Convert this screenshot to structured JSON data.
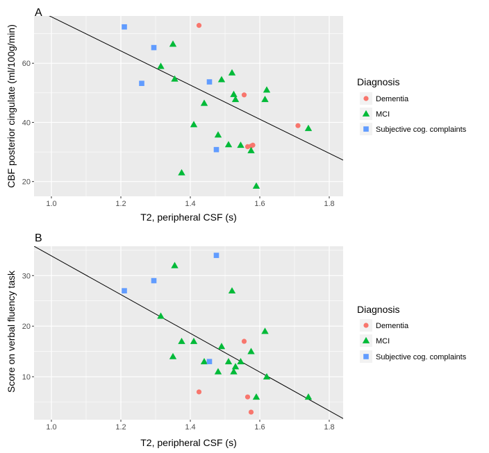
{
  "chart_data": [
    {
      "type": "scatter",
      "panel_label": "A",
      "xlabel": "T2, peripheral CSF (s)",
      "ylabel": "CBF posterior cingulate (ml/100g/min)",
      "xlim": [
        0.95,
        1.84
      ],
      "ylim": [
        15,
        76
      ],
      "x_ticks": [
        1.0,
        1.2,
        1.4,
        1.6,
        1.8
      ],
      "x_tick_labels": [
        "1.0",
        "1.2",
        "1.4",
        "1.6",
        "1.8"
      ],
      "y_ticks": [
        20,
        40,
        60
      ],
      "y_tick_labels": [
        "20",
        "40",
        "60"
      ],
      "grid": true,
      "legend": {
        "title": "Diagnosis",
        "position": "right"
      },
      "trend_line": {
        "slope": -57.7,
        "intercept": 133.4
      },
      "series": [
        {
          "name": "Dementia",
          "color": "#F8766D",
          "marker": "circle",
          "points": [
            [
              1.425,
              72.8
            ],
            [
              1.555,
              49.3
            ],
            [
              1.565,
              31.8
            ],
            [
              1.575,
              32.0
            ],
            [
              1.58,
              32.3
            ],
            [
              1.71,
              38.9
            ]
          ]
        },
        {
          "name": "MCI",
          "color": "#00BA38",
          "marker": "triangle",
          "points": [
            [
              1.315,
              59.0
            ],
            [
              1.35,
              66.5
            ],
            [
              1.355,
              54.7
            ],
            [
              1.375,
              23.0
            ],
            [
              1.41,
              39.3
            ],
            [
              1.44,
              46.5
            ],
            [
              1.48,
              35.8
            ],
            [
              1.49,
              54.5
            ],
            [
              1.51,
              32.5
            ],
            [
              1.52,
              56.8
            ],
            [
              1.525,
              49.5
            ],
            [
              1.53,
              47.8
            ],
            [
              1.545,
              32.3
            ],
            [
              1.575,
              30.5
            ],
            [
              1.59,
              18.5
            ],
            [
              1.615,
              47.8
            ],
            [
              1.62,
              51.0
            ],
            [
              1.74,
              38.0
            ]
          ]
        },
        {
          "name": "Subjective cog. complaints",
          "color": "#619CFF",
          "marker": "square",
          "points": [
            [
              1.21,
              72.3
            ],
            [
              1.26,
              53.2
            ],
            [
              1.295,
              65.3
            ],
            [
              1.455,
              53.7
            ],
            [
              1.475,
              30.8
            ]
          ]
        }
      ]
    },
    {
      "type": "scatter",
      "panel_label": "B",
      "xlabel": "T2, peripheral CSF (s)",
      "ylabel": "Score on verbal fluency task",
      "xlim": [
        0.95,
        1.84
      ],
      "ylim": [
        1.5,
        35.8
      ],
      "x_ticks": [
        1.0,
        1.2,
        1.4,
        1.6,
        1.8
      ],
      "x_tick_labels": [
        "1.0",
        "1.2",
        "1.4",
        "1.6",
        "1.8"
      ],
      "y_ticks": [
        10,
        20,
        30
      ],
      "y_tick_labels": [
        "10",
        "20",
        "30"
      ],
      "grid": true,
      "legend": {
        "title": "Diagnosis",
        "position": "right"
      },
      "trend_line": {
        "slope": -38.3,
        "intercept": 72.2
      },
      "series": [
        {
          "name": "Dementia",
          "color": "#F8766D",
          "marker": "circle",
          "points": [
            [
              1.425,
              7.0
            ],
            [
              1.555,
              17.0
            ],
            [
              1.565,
              6.0
            ],
            [
              1.575,
              3.0
            ]
          ]
        },
        {
          "name": "MCI",
          "color": "#00BA38",
          "marker": "triangle",
          "points": [
            [
              1.315,
              22.0
            ],
            [
              1.35,
              14.0
            ],
            [
              1.355,
              32.0
            ],
            [
              1.375,
              17.0
            ],
            [
              1.41,
              17.0
            ],
            [
              1.44,
              13.0
            ],
            [
              1.48,
              11.0
            ],
            [
              1.49,
              16.0
            ],
            [
              1.51,
              13.0
            ],
            [
              1.52,
              27.0
            ],
            [
              1.525,
              11.0
            ],
            [
              1.53,
              12.0
            ],
            [
              1.545,
              13.0
            ],
            [
              1.575,
              15.0
            ],
            [
              1.59,
              6.0
            ],
            [
              1.615,
              19.0
            ],
            [
              1.62,
              10.0
            ],
            [
              1.74,
              6.0
            ]
          ]
        },
        {
          "name": "Subjective cog. complaints",
          "color": "#619CFF",
          "marker": "square",
          "points": [
            [
              1.21,
              27.0
            ],
            [
              1.295,
              29.0
            ],
            [
              1.455,
              13.0
            ],
            [
              1.475,
              34.0
            ]
          ]
        }
      ]
    }
  ]
}
